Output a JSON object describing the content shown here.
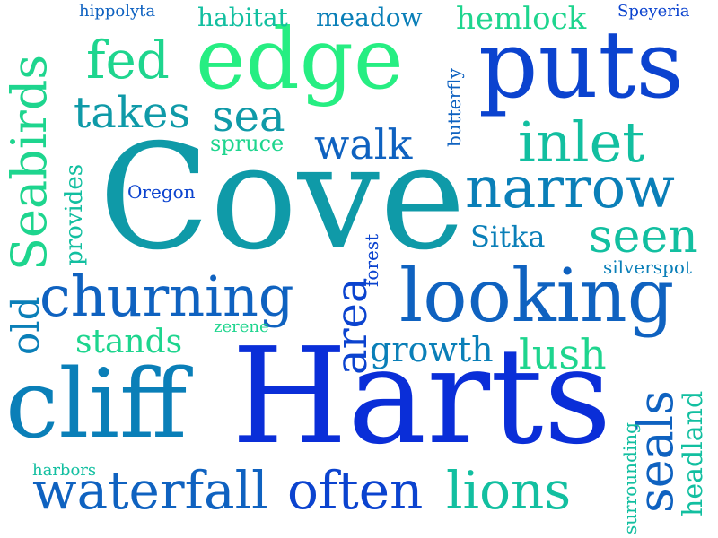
{
  "words": {
    "harts": "Harts",
    "cove": "Cove",
    "edge": "edge",
    "puts": "puts",
    "cliff": "cliff",
    "looking": "looking",
    "churning": "churning",
    "narrow": "narrow",
    "waterfall": "waterfall",
    "often": "often",
    "lions": "lions",
    "seabirds": "Seabirds",
    "inlet": "inlet",
    "fed": "fed",
    "seals": "seals",
    "sea": "sea",
    "takes": "takes",
    "walk": "walk",
    "seen": "seen",
    "area": "area",
    "growth": "growth",
    "lush": "lush",
    "sitka": "Sitka",
    "stands": "stands",
    "spruce": "spruce",
    "old": "old",
    "headland": "headland",
    "hemlock": "hemlock",
    "meadow": "meadow",
    "habitat": "habitat",
    "provides": "provides",
    "oregon": "Oregon",
    "silverspot": "silverspot",
    "butterfly": "butterfly",
    "forest": "forest",
    "zerene": "zerene",
    "harbors": "harbors",
    "surrounding": "surrounding",
    "hippolyta": "hippolyta",
    "speyeria": "Speyeria"
  }
}
